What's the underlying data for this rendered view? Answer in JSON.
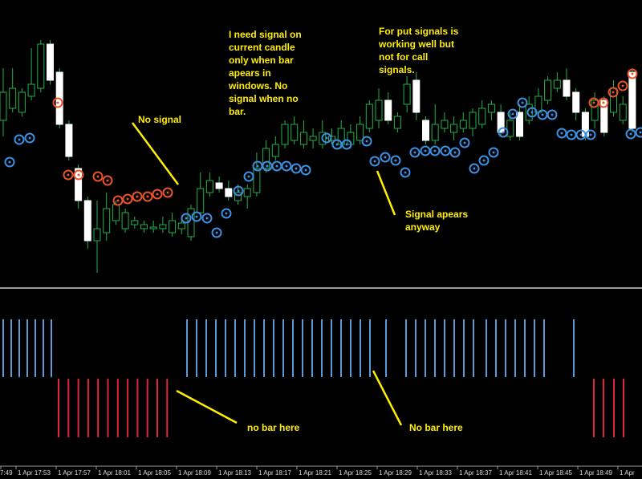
{
  "annotations": {
    "request": [
      "I need signal on",
      "current candle",
      "only when bar",
      "apears in",
      "windows. No",
      "signal when no",
      "bar."
    ],
    "no_signal": "No signal",
    "put_signals": [
      "For put signals is",
      "working well but",
      "not for call",
      "signals."
    ],
    "signal_appears": [
      "Signal apears",
      "anyway"
    ],
    "no_bar_left": "no bar here",
    "no_bar_right": "No bar here"
  },
  "time_axis": [
    "7:49",
    "1 Apr 17:53",
    "1 Apr 17:57",
    "1 Apr 18:01",
    "1 Apr 18:05",
    "1 Apr 18:09",
    "1 Apr 18:13",
    "1 Apr 18:17",
    "1 Apr 18:21",
    "1 Apr 18:25",
    "1 Apr 18:29",
    "1 Apr 18:33",
    "1 Apr 18:37",
    "1 Apr 18:41",
    "1 Apr 18:45",
    "1 Apr 18:49",
    "1 Apr"
  ]
}
